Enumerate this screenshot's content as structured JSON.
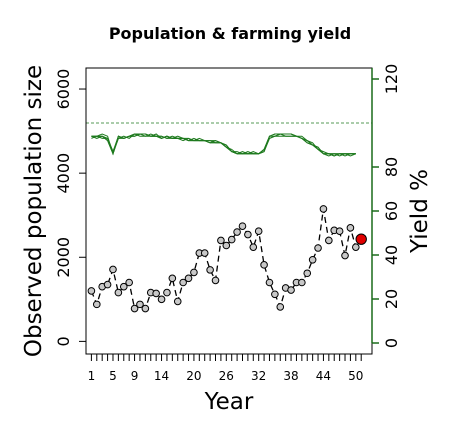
{
  "chart_data": {
    "type": "line",
    "title": "Population & farming yield",
    "xlabel": "Year",
    "ylabel_left": "Observed population size",
    "ylabel_right": "Yield %",
    "xlim": [
      0,
      53
    ],
    "ylim_left": [
      -300,
      6500
    ],
    "ylim_right": [
      -5,
      125
    ],
    "x_ticks": [
      1,
      2,
      3,
      4,
      5,
      6,
      7,
      8,
      9,
      10,
      11,
      12,
      13,
      14,
      15,
      16,
      17,
      18,
      19,
      20,
      21,
      22,
      23,
      24,
      25,
      26,
      27,
      28,
      29,
      30,
      31,
      32,
      33,
      34,
      35,
      36,
      37,
      38,
      39,
      40,
      41,
      42,
      43,
      44,
      45,
      46,
      47,
      48,
      49,
      50,
      51
    ],
    "x_tick_labels": [
      "1",
      "5",
      "9",
      "14",
      "20",
      "26",
      "32",
      "38",
      "44",
      "50"
    ],
    "x_tick_label_values": [
      1,
      5,
      9,
      14,
      20,
      26,
      32,
      38,
      44,
      50
    ],
    "y_ticks_left": [
      0,
      2000,
      4000,
      6000
    ],
    "y_tick_labels_left": [
      "0",
      "2000",
      "4000",
      "6000"
    ],
    "y_ticks_right": [
      0,
      20,
      40,
      60,
      80,
      120
    ],
    "y_tick_labels_right": [
      "0",
      "20",
      "40",
      "60",
      "80",
      "120"
    ],
    "reference_line_yield": 100,
    "population": {
      "x": [
        1,
        2,
        3,
        4,
        5,
        6,
        7,
        8,
        9,
        10,
        11,
        12,
        13,
        14,
        15,
        16,
        17,
        18,
        19,
        20,
        21,
        22,
        23,
        24,
        25,
        26,
        27,
        28,
        29,
        30,
        31,
        32,
        33,
        34,
        35,
        36,
        37,
        38,
        39,
        40,
        41,
        42,
        43,
        44,
        45,
        46,
        47,
        48,
        49,
        50
      ],
      "y": [
        1200,
        880,
        1300,
        1350,
        1710,
        1160,
        1300,
        1400,
        780,
        880,
        780,
        1160,
        1140,
        1000,
        1160,
        1500,
        950,
        1400,
        1500,
        1640,
        2100,
        2100,
        1700,
        1450,
        2400,
        2280,
        2420,
        2600,
        2740,
        2540,
        2240,
        2620,
        1820,
        1400,
        1120,
        820,
        1270,
        1220,
        1400,
        1400,
        1620,
        1940,
        2220,
        3150,
        2400,
        2640,
        2620,
        2040,
        2700,
        2240
      ],
      "color": "#c8c8c8",
      "line_style": "dashed"
    },
    "population_highlight": {
      "x": 51,
      "y": 2430,
      "color": "#e00000"
    },
    "yield_series": [
      {
        "x": [
          1,
          2,
          3,
          4,
          5,
          6,
          7,
          8,
          9,
          10,
          11,
          12,
          13,
          14,
          15,
          16,
          17,
          18,
          19,
          20,
          21,
          22,
          23,
          24,
          25,
          26,
          27,
          28,
          29,
          30,
          31,
          32,
          33,
          34,
          35,
          36,
          37,
          38,
          39,
          40,
          41,
          42,
          43,
          44,
          45,
          46,
          47,
          48,
          49,
          50
        ],
        "y": [
          94,
          94,
          94,
          92,
          86,
          94,
          93,
          94,
          95,
          95,
          95,
          94,
          94,
          93,
          94,
          93,
          93,
          93,
          92,
          92,
          92,
          92,
          91,
          91,
          91,
          89,
          87,
          86,
          86,
          86,
          86,
          86,
          88,
          94,
          95,
          95,
          95,
          95,
          94,
          93,
          91,
          90,
          88,
          86,
          86,
          85,
          86,
          86,
          86,
          86
        ]
      },
      {
        "x": [
          1,
          2,
          3,
          4,
          5,
          6,
          7,
          8,
          9,
          10,
          11,
          12,
          13,
          14,
          15,
          16,
          17,
          18,
          19,
          20,
          21,
          22,
          23,
          24,
          25,
          26,
          27,
          28,
          29,
          30,
          31,
          32,
          33,
          34,
          35,
          36,
          37,
          38,
          39,
          40,
          41,
          42,
          43,
          44,
          45,
          46,
          47,
          48,
          49,
          50
        ],
        "y": [
          94,
          94,
          93,
          93,
          87,
          93,
          93,
          94,
          94,
          95,
          95,
          94,
          94,
          94,
          93,
          94,
          93,
          93,
          93,
          92,
          92,
          92,
          92,
          92,
          91,
          90,
          87,
          87,
          86,
          87,
          86,
          86,
          87,
          93,
          94,
          94,
          94,
          94,
          94,
          93,
          92,
          90,
          89,
          86,
          86,
          86,
          85,
          86,
          85,
          86
        ]
      },
      {
        "x": [
          1,
          2,
          3,
          4,
          5,
          6,
          7,
          8,
          9,
          10,
          11,
          12,
          13,
          14,
          15,
          16,
          17,
          18,
          19,
          20,
          21,
          22,
          23,
          24,
          25,
          26,
          27,
          28,
          29,
          30,
          31,
          32,
          33,
          34,
          35,
          36,
          37,
          38,
          39,
          40,
          41,
          42,
          43,
          44,
          45,
          46,
          47,
          48,
          49,
          50
        ],
        "y": [
          93,
          94,
          95,
          94,
          86,
          93,
          94,
          93,
          95,
          94,
          94,
          94,
          95,
          93,
          94,
          93,
          93,
          92,
          93,
          92,
          93,
          92,
          92,
          91,
          91,
          89,
          88,
          86,
          87,
          86,
          87,
          86,
          87,
          94,
          94,
          95,
          95,
          95,
          94,
          94,
          92,
          91,
          88,
          87,
          86,
          86,
          86,
          85,
          86,
          86
        ]
      },
      {
        "x": [
          1,
          2,
          3,
          4,
          5,
          6,
          7,
          8,
          9,
          10,
          11,
          12,
          13,
          14,
          15,
          16,
          17,
          18,
          19,
          20,
          21,
          22,
          23,
          24,
          25,
          26,
          27,
          28,
          29,
          30,
          31,
          32,
          33,
          34,
          35,
          36,
          37,
          38,
          39,
          40,
          41,
          42,
          43,
          44,
          45,
          46,
          47,
          48,
          49,
          50
        ],
        "y": [
          94,
          93,
          94,
          93,
          87,
          94,
          93,
          94,
          94,
          95,
          94,
          95,
          94,
          94,
          93,
          93,
          94,
          93,
          92,
          93,
          92,
          92,
          91,
          92,
          91,
          90,
          87,
          86,
          86,
          86,
          86,
          86,
          88,
          93,
          94,
          95,
          94,
          94,
          94,
          93,
          92,
          90,
          89,
          86,
          85,
          86,
          86,
          86,
          86,
          86
        ]
      },
      {
        "x": [
          1,
          2,
          3,
          4,
          5,
          6,
          7,
          8,
          9,
          10,
          11,
          12,
          13,
          14,
          15,
          16,
          17,
          18,
          19,
          20,
          21,
          22,
          23,
          24,
          25,
          26,
          27,
          28,
          29,
          30,
          31,
          32,
          33,
          34,
          35,
          36,
          37,
          38,
          39,
          40,
          41,
          42,
          43,
          44,
          45,
          46,
          47,
          48,
          49,
          50
        ],
        "y": [
          94,
          94,
          94,
          92,
          86,
          94,
          93,
          94,
          95,
          95,
          95,
          94,
          94,
          93,
          94,
          93,
          93,
          93,
          92,
          92,
          92,
          92,
          91,
          91,
          91,
          89,
          87,
          86,
          86,
          86,
          86,
          86,
          88,
          94,
          95,
          95,
          95,
          95,
          94,
          93,
          91,
          90,
          88,
          86,
          86,
          85,
          86,
          86,
          86,
          86
        ]
      }
    ],
    "colors": {
      "yield": "#1e7a1e",
      "right_axis": "#1a6b1a",
      "right_label": "#2e6b1f"
    }
  }
}
